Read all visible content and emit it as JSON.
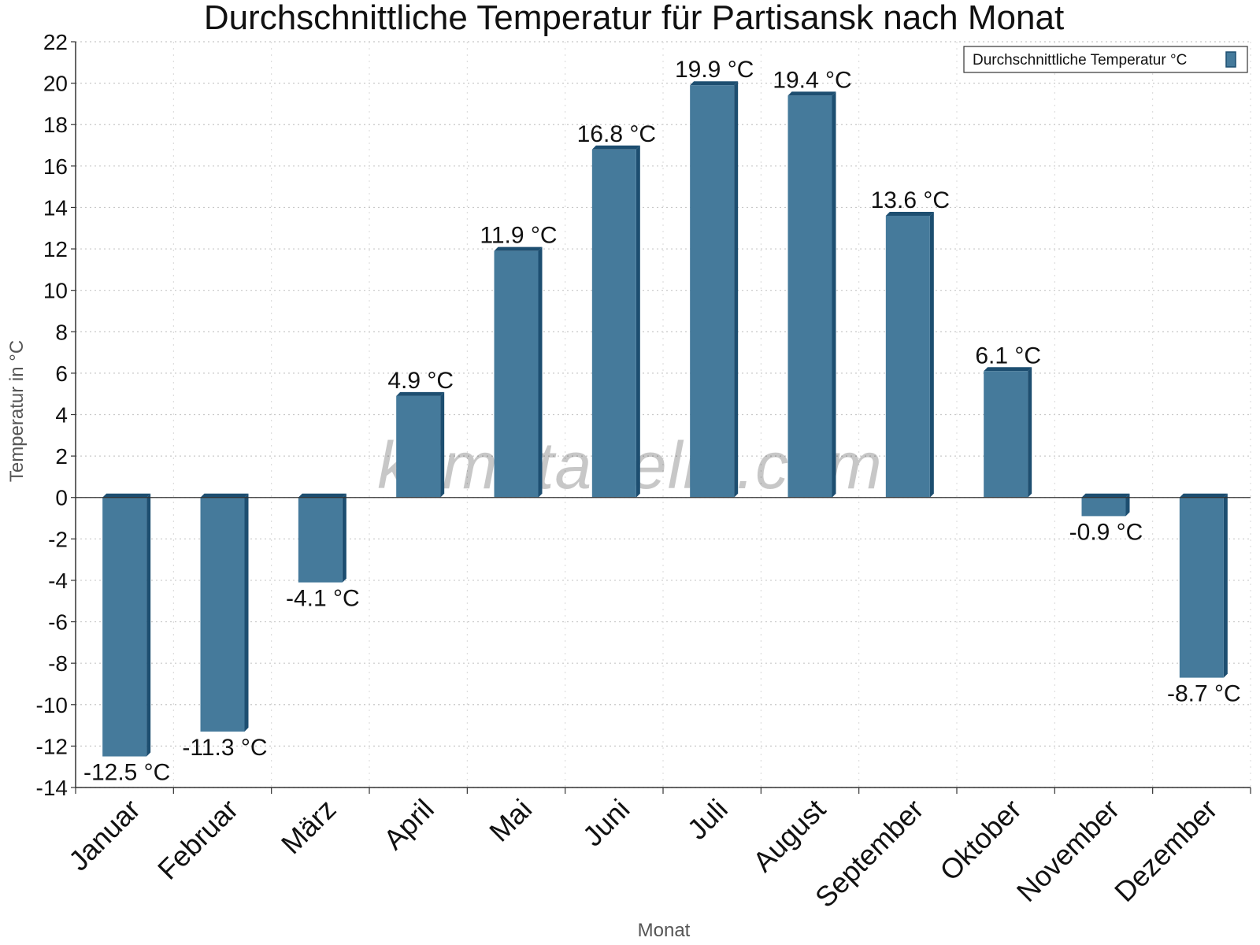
{
  "chart_data": {
    "type": "bar",
    "title": "Durchschnittliche Temperatur für Partisansk nach Monat",
    "xlabel": "Monat",
    "ylabel": "Temperatur in °C",
    "categories": [
      "Januar",
      "Februar",
      "März",
      "April",
      "Mai",
      "Juni",
      "Juli",
      "August",
      "September",
      "Oktober",
      "November",
      "Dezember"
    ],
    "series": [
      {
        "name": "Durchschnittliche Temperatur °C",
        "values": [
          -12.5,
          -11.3,
          -4.1,
          4.9,
          11.9,
          16.8,
          19.9,
          19.4,
          13.6,
          6.1,
          -0.9,
          -8.7
        ],
        "labels": [
          "-12.5 °C",
          "-11.3 °C",
          "-4.1 °C",
          "4.9 °C",
          "11.9 °C",
          "16.8 °C",
          "19.9 °C",
          "19.4 °C",
          "13.6 °C",
          "6.1 °C",
          "-0.9 °C",
          "-8.7 °C"
        ],
        "color": "#457a9b",
        "side_color": "#1d4e70"
      }
    ],
    "ylim": [
      -14,
      22
    ],
    "ytick_step": 2,
    "grid": true,
    "legend_position": "top-right",
    "watermark": "klimatabelle.com"
  }
}
